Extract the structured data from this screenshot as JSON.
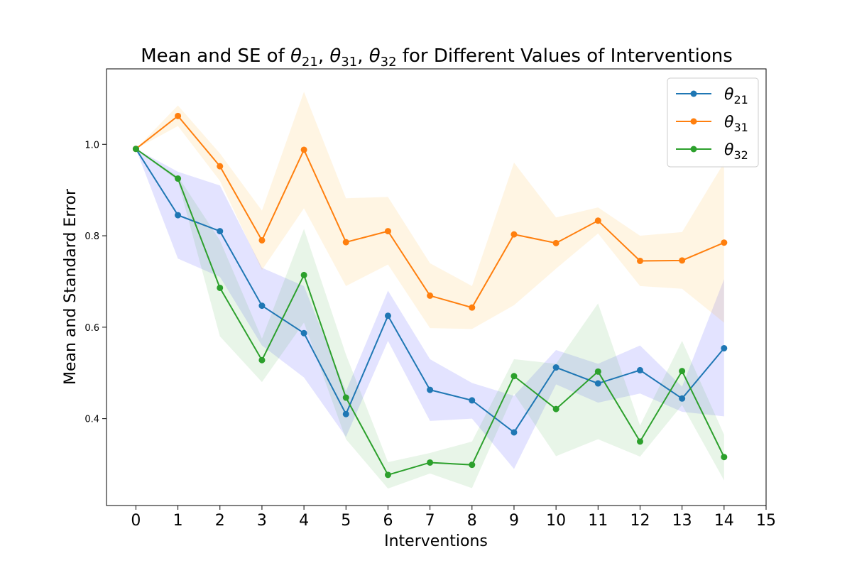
{
  "chart_data": {
    "type": "line",
    "title": {
      "prefix": "Mean and SE of ",
      "parts": [
        {
          "sym": "θ",
          "sub": "21",
          "after": ", "
        },
        {
          "sym": "θ",
          "sub": "31",
          "after": ", "
        },
        {
          "sym": "θ",
          "sub": "32",
          "after": " for Different Values of Interventions"
        }
      ]
    },
    "xlabel": "Interventions",
    "ylabel": "Mean and Standard Error",
    "xlim": [
      -0.7,
      15
    ],
    "ylim": [
      0.21,
      1.165
    ],
    "xticks": [
      0,
      1,
      2,
      3,
      4,
      5,
      6,
      7,
      8,
      9,
      10,
      11,
      12,
      13,
      14,
      15
    ],
    "yticks": [
      0.4,
      0.6,
      0.8,
      1.0
    ],
    "ytick_labels": [
      "0.4",
      "0.6",
      "0.8",
      "1.0"
    ],
    "legend_position": "top-right",
    "x": [
      0,
      1,
      2,
      3,
      4,
      5,
      6,
      7,
      8,
      9,
      10,
      11,
      12,
      13,
      14
    ],
    "series": [
      {
        "name": "θ",
        "sub": "21",
        "color": "#1f77b4",
        "band_color": "#0000ff",
        "values": [
          0.99,
          0.845,
          0.81,
          0.647,
          0.587,
          0.41,
          0.625,
          0.463,
          0.44,
          0.37,
          0.512,
          0.477,
          0.506,
          0.444,
          0.554
        ],
        "upper": [
          0.99,
          0.94,
          0.91,
          0.73,
          0.69,
          0.46,
          0.68,
          0.53,
          0.478,
          0.45,
          0.55,
          0.52,
          0.56,
          0.47,
          0.705
        ],
        "lower": [
          0.99,
          0.75,
          0.71,
          0.56,
          0.49,
          0.36,
          0.57,
          0.395,
          0.4,
          0.29,
          0.475,
          0.435,
          0.455,
          0.415,
          0.405
        ]
      },
      {
        "name": "θ",
        "sub": "31",
        "color": "#ff7f0e",
        "band_color": "#ffa500",
        "values": [
          0.99,
          1.062,
          0.952,
          0.79,
          0.988,
          0.786,
          0.81,
          0.669,
          0.643,
          0.803,
          0.784,
          0.833,
          0.745,
          0.746,
          0.785
        ],
        "upper": [
          0.99,
          1.085,
          0.98,
          0.855,
          1.115,
          0.882,
          0.885,
          0.74,
          0.69,
          0.96,
          0.84,
          0.862,
          0.8,
          0.808,
          0.96
        ],
        "lower": [
          0.99,
          1.04,
          0.92,
          0.725,
          0.86,
          0.69,
          0.737,
          0.598,
          0.596,
          0.648,
          0.728,
          0.805,
          0.69,
          0.684,
          0.61
        ]
      },
      {
        "name": "θ",
        "sub": "32",
        "color": "#2ca02c",
        "band_color": "#2ca02c",
        "values": [
          0.99,
          0.925,
          0.686,
          0.528,
          0.714,
          0.446,
          0.277,
          0.304,
          0.299,
          0.493,
          0.421,
          0.503,
          0.35,
          0.504,
          0.316
        ],
        "upper": [
          0.99,
          0.93,
          0.79,
          0.575,
          0.815,
          0.54,
          0.305,
          0.325,
          0.35,
          0.53,
          0.52,
          0.652,
          0.385,
          0.57,
          0.365
        ],
        "lower": [
          0.99,
          0.92,
          0.58,
          0.48,
          0.61,
          0.355,
          0.247,
          0.28,
          0.248,
          0.455,
          0.318,
          0.355,
          0.317,
          0.43,
          0.265
        ]
      }
    ]
  }
}
